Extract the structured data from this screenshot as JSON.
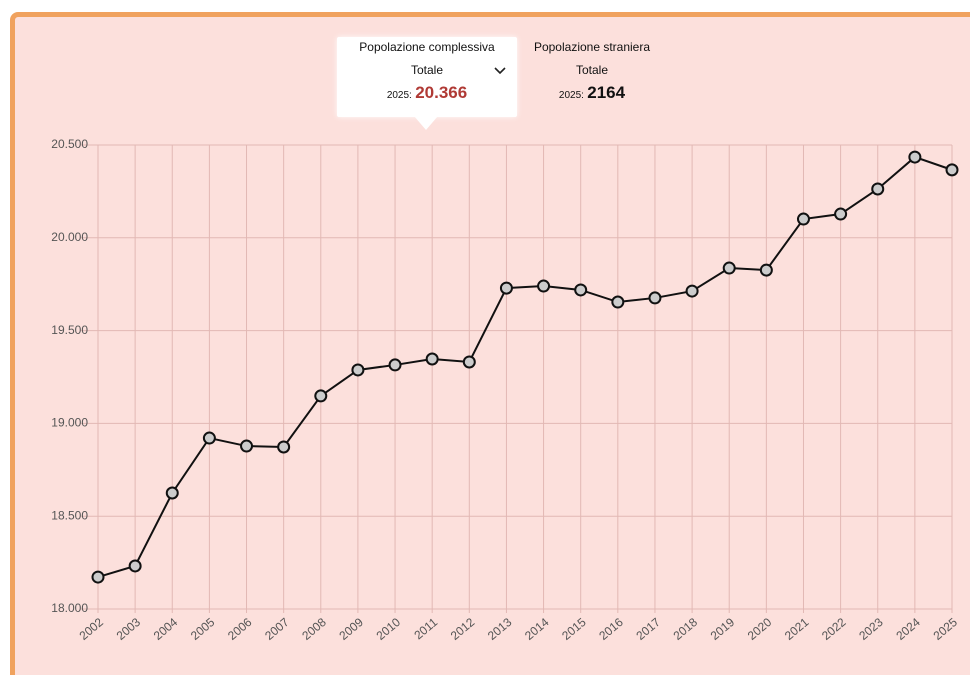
{
  "tabs": [
    {
      "title": "Popolazione complessiva",
      "subtitle": "Totale",
      "year_label": "2025:",
      "value": "20.366"
    },
    {
      "title": "Popolazione straniera",
      "subtitle": "Totale",
      "year_label": "2025:",
      "value": "2164"
    }
  ],
  "chart_data": {
    "type": "line",
    "categories": [
      "2002",
      "2003",
      "2004",
      "2005",
      "2006",
      "2007",
      "2008",
      "2009",
      "2010",
      "2011",
      "2012",
      "2013",
      "2014",
      "2015",
      "2016",
      "2017",
      "2018",
      "2019",
      "2020",
      "2021",
      "2022",
      "2023",
      "2024",
      "2025"
    ],
    "series": [
      {
        "name": "Popolazione complessiva",
        "color": "#111111",
        "values": [
          18172,
          18232,
          18625,
          18921,
          18878,
          18873,
          19148,
          19288,
          19315,
          19347,
          19331,
          19729,
          19740,
          19719,
          19654,
          19676,
          19713,
          19837,
          19826,
          20101,
          20128,
          20263,
          20435,
          20366
        ]
      }
    ],
    "ylim": [
      18000,
      20500
    ],
    "yticks": [
      {
        "value": 18000,
        "label": "18.000"
      },
      {
        "value": 18500,
        "label": "18.500"
      },
      {
        "value": 19000,
        "label": "19.000"
      },
      {
        "value": 19500,
        "label": "19.500"
      },
      {
        "value": 20000,
        "label": "20.000"
      },
      {
        "value": 20500,
        "label": "20.500"
      }
    ],
    "grid": true
  }
}
